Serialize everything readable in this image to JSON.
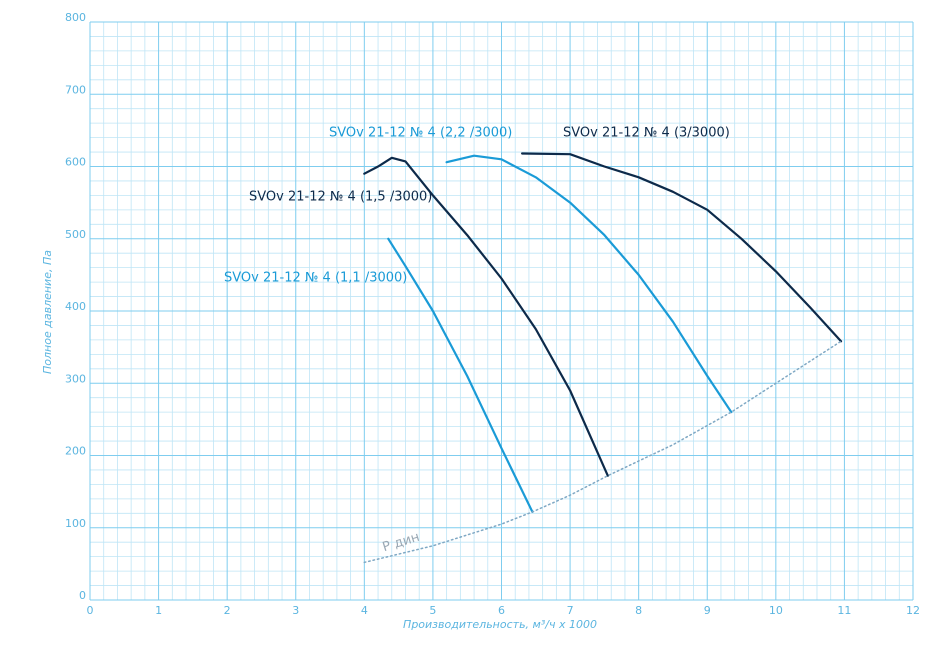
{
  "chart_data": {
    "type": "line",
    "x_label": "Производительность, м³/ч х 1000",
    "y_label": "Полное давление, Па",
    "xlim": [
      0,
      12
    ],
    "xticks": [
      0,
      1,
      2,
      3,
      4,
      5,
      6,
      7,
      8,
      9,
      10,
      11,
      12
    ],
    "ylim": [
      0,
      800
    ],
    "yticks": [
      0,
      100,
      200,
      300,
      400,
      500,
      600,
      700,
      800
    ],
    "grid": true,
    "series": [
      {
        "name": "SVOv 21-12 № 4 (1,1 /3000)",
        "color": "#1a9bd7",
        "x": [
          4.35,
          4.6,
          5.0,
          5.5,
          6.0,
          6.45
        ],
        "values": [
          500,
          462,
          400,
          310,
          210,
          122
        ]
      },
      {
        "name": "SVOv 21-12 № 4 (1,5 /3000)",
        "color": "#0d2a4a",
        "x": [
          4.0,
          4.2,
          4.4,
          4.6,
          5.0,
          5.5,
          6.0,
          6.5,
          7.0,
          7.55
        ],
        "values": [
          590,
          600,
          612,
          607,
          560,
          505,
          445,
          375,
          290,
          172
        ]
      },
      {
        "name": "SVOv 21-12 № 4 (2,2 /3000)",
        "color": "#1a9bd7",
        "x": [
          5.2,
          5.6,
          6.0,
          6.5,
          7.0,
          7.5,
          8.0,
          8.5,
          9.0,
          9.35
        ],
        "values": [
          606,
          615,
          610,
          585,
          550,
          505,
          450,
          385,
          310,
          260
        ]
      },
      {
        "name": "SVOv 21-12 № 4 (3/3000)",
        "color": "#0d2a4a",
        "x": [
          6.3,
          7.0,
          7.5,
          8.0,
          8.5,
          9.0,
          9.5,
          10.0,
          10.5,
          10.95
        ],
        "values": [
          618,
          617,
          600,
          585,
          565,
          540,
          500,
          455,
          405,
          358
        ]
      },
      {
        "name": "Р дин",
        "color": "#7fa8c4",
        "dotted": true,
        "x": [
          4.0,
          5.0,
          6.0,
          6.45,
          7.0,
          7.55,
          8.5,
          9.35,
          10.0,
          10.95
        ],
        "values": [
          52,
          75,
          105,
          122,
          145,
          172,
          215,
          260,
          300,
          358
        ]
      }
    ]
  }
}
